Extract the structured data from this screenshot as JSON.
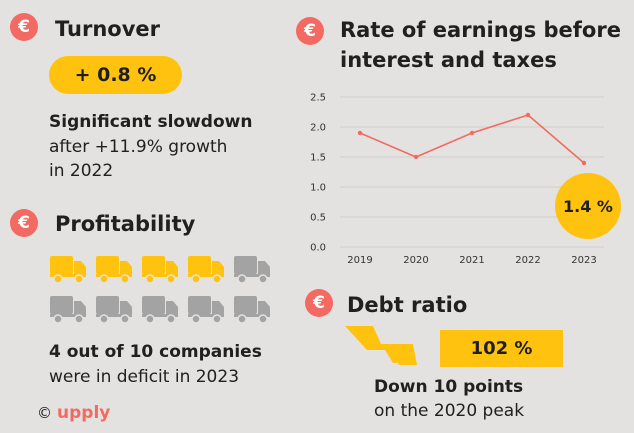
{
  "icons": {
    "currency": "euro-icon",
    "truck": "truck-icon",
    "arrow": "down-arrow-icon"
  },
  "colors": {
    "accent_red": "#f26a61",
    "highlight_yellow": "#ffc20e",
    "truck_filled": "#ffc20e",
    "truck_empty": "#a3a3a3",
    "line": "#f26a61"
  },
  "turnover": {
    "title": "Turnover",
    "value": "+ 0.8 %",
    "line1": "Significant slowdown",
    "line2": "after +11.9% growth",
    "line3": "in 2022"
  },
  "profitability": {
    "title": "Profitability",
    "deficit_count": 4,
    "total": 10,
    "line1": "4 out of 10 companies",
    "line2": "were in deficit in 2023"
  },
  "ebit": {
    "title_line1": "Rate of earnings before",
    "title_line2": "interest and taxes",
    "highlight": "1.4 %"
  },
  "debt": {
    "title": "Debt ratio",
    "value": "102 %",
    "line1": "Down 10 points",
    "line2": "on the 2020 peak"
  },
  "footer": {
    "copyright": "©",
    "brand": "upply"
  },
  "chart_data": {
    "type": "line",
    "title": "Rate of earnings before interest and taxes",
    "x": [
      "2019",
      "2020",
      "2021",
      "2022",
      "2023"
    ],
    "series": [
      {
        "values": [
          1.9,
          1.5,
          1.9,
          2.2,
          1.4
        ]
      }
    ],
    "ylim": [
      0,
      2.5
    ],
    "yticks": [
      "0.0",
      "0.5",
      "1.0",
      "1.5",
      "2.0",
      "2.5"
    ],
    "grid": true
  }
}
